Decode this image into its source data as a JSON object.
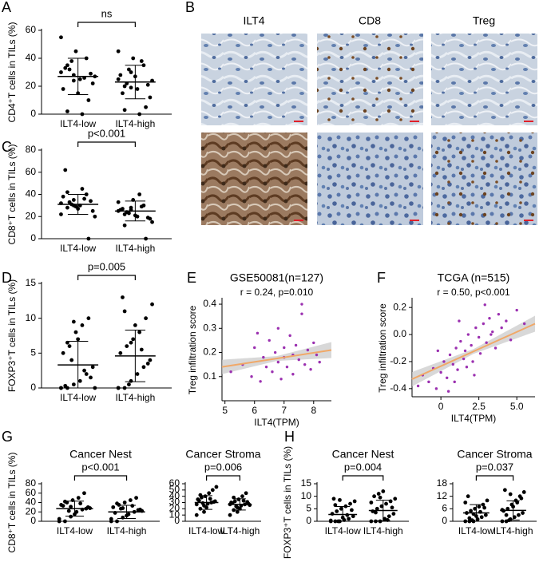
{
  "chart_data": [
    {
      "type": "dot",
      "panel": "A",
      "ylabel": "CD4⁺T cells in TILs (%)",
      "categories": [
        "ILT4-low",
        "ILT4-high"
      ],
      "sig": "ns",
      "ylim": [
        0,
        60
      ],
      "yticks": [
        0,
        20,
        40,
        60
      ],
      "color": "#000000",
      "groups": [
        {
          "values": [
            30,
            35,
            28,
            25,
            40,
            22,
            18,
            32,
            45,
            0,
            10,
            27,
            33,
            38,
            15,
            26,
            29,
            55,
            2,
            24
          ],
          "mean": 27,
          "sd": 13
        },
        {
          "values": [
            25,
            20,
            30,
            18,
            35,
            12,
            28,
            22,
            40,
            0,
            5,
            24,
            15,
            32,
            27,
            38,
            21,
            45,
            3,
            19
          ],
          "mean": 23,
          "sd": 12
        }
      ]
    },
    {
      "type": "dot",
      "panel": "C",
      "ylabel": "CD8⁺T cells in TILs (%)",
      "categories": [
        "ILT4-low",
        "ILT4-high"
      ],
      "sig": "p<0.001",
      "ylim": [
        0,
        80
      ],
      "yticks": [
        0,
        20,
        40,
        60,
        80
      ],
      "color": "#000000",
      "groups": [
        {
          "values": [
            32,
            28,
            35,
            30,
            40,
            25,
            38,
            33,
            29,
            45,
            0,
            20,
            62,
            31,
            27,
            36,
            34,
            22,
            42,
            30
          ],
          "mean": 31,
          "sd": 9
        },
        {
          "values": [
            25,
            22,
            28,
            20,
            30,
            18,
            26,
            24,
            35,
            40,
            0,
            15,
            27,
            23,
            21,
            29,
            19,
            33,
            12,
            26
          ],
          "mean": 25,
          "sd": 9
        }
      ]
    },
    {
      "type": "dot",
      "panel": "D",
      "ylabel": "FOXP3⁺T cells in TILs (%)",
      "categories": [
        "ILT4-low",
        "ILT4-high"
      ],
      "sig": "p=0.005",
      "ylim": [
        0,
        15
      ],
      "yticks": [
        0,
        5,
        10,
        15
      ],
      "color": "#000000",
      "groups": [
        {
          "values": [
            0,
            0,
            0.5,
            1,
            2,
            3,
            5,
            6,
            8,
            9,
            10,
            0,
            0.3,
            4,
            7,
            2.5,
            1.5,
            0,
            6.5,
            9.5
          ],
          "mean": 3.3,
          "sd": 3.4
        },
        {
          "values": [
            0,
            0,
            1,
            2,
            3,
            4,
            5,
            6,
            7,
            8,
            10,
            12,
            13,
            0.5,
            9,
            5.5,
            3.5,
            0,
            11,
            6.5
          ],
          "mean": 4.6,
          "sd": 3.7
        }
      ]
    },
    {
      "type": "scatter",
      "panel": "E",
      "title": "GSE50081(n=127)",
      "annotation": "r = 0.24, p=0.010",
      "xlabel": "ILT4(TPM)",
      "ylabel": "Treg infiltration score",
      "color": "#9b30b0",
      "fit_color": "#f0a868",
      "xlim": [
        4.9,
        8.6
      ],
      "xticks": [
        5,
        6,
        7,
        8
      ],
      "ylim": [
        0,
        0.42
      ],
      "yticks": [
        0.1,
        0.2,
        0.3,
        0.4
      ],
      "x": [
        5.2,
        5.6,
        5.9,
        6.0,
        6.2,
        6.3,
        6.4,
        6.5,
        6.6,
        6.7,
        6.8,
        6.8,
        6.9,
        7.0,
        7.0,
        7.1,
        7.2,
        7.3,
        7.3,
        7.4,
        7.5,
        7.6,
        7.7,
        7.8,
        7.9,
        8.0,
        8.1,
        8.2,
        6.1,
        7.6
      ],
      "y": [
        0.12,
        0.15,
        0.1,
        0.22,
        0.08,
        0.18,
        0.14,
        0.25,
        0.12,
        0.2,
        0.16,
        0.3,
        0.09,
        0.18,
        0.22,
        0.14,
        0.27,
        0.19,
        0.11,
        0.23,
        0.17,
        0.36,
        0.15,
        0.21,
        0.13,
        0.24,
        0.19,
        0.16,
        0.28,
        0.4
      ],
      "fit": {
        "x": [
          4.9,
          8.6
        ],
        "y": [
          0.14,
          0.21
        ]
      }
    },
    {
      "type": "scatter",
      "panel": "F",
      "title": "TCGA (n=515)",
      "annotation": "r = 0.50, p<0.001",
      "xlabel": "ILT4(TPM)",
      "ylabel": "Treg infiltration score",
      "color": "#9b30b0",
      "fit_color": "#f0a868",
      "xlim": [
        -1.9,
        6.2
      ],
      "xticks": [
        0,
        2.5,
        {
          "value": 5,
          "label": "5.0"
        }
      ],
      "ylim": [
        -0.46,
        0.26
      ],
      "yticks": [
        -0.4,
        -0.2,
        {
          "value": 0,
          "label": "0.0"
        },
        0.2
      ],
      "x": [
        -1.5,
        -1.2,
        -0.8,
        -0.5,
        -0.3,
        0,
        0.2,
        0.4,
        0.6,
        0.8,
        1.0,
        1.1,
        1.3,
        1.5,
        1.6,
        1.8,
        2.0,
        2.1,
        2.3,
        2.5,
        2.6,
        2.8,
        3.0,
        3.2,
        3.4,
        3.6,
        3.8,
        4.0,
        4.3,
        4.6,
        5.0,
        5.5,
        0.5,
        1.2,
        2.2,
        2.9,
        1.7,
        -0.2,
        3.3,
        0.9
      ],
      "y": [
        -0.38,
        -0.3,
        -0.35,
        -0.25,
        -0.4,
        -0.28,
        -0.2,
        -0.32,
        -0.15,
        -0.22,
        -0.1,
        -0.26,
        -0.05,
        -0.18,
        -0.12,
        0.0,
        -0.08,
        -0.2,
        0.05,
        -0.02,
        -0.14,
        0.08,
        -0.06,
        0.12,
        0.02,
        -0.1,
        0.15,
        0.05,
        0.1,
        -0.04,
        0.18,
        0.08,
        -0.42,
        0.1,
        -0.3,
        0.22,
        -0.24,
        -0.12,
        0.0,
        -0.35
      ],
      "fit": {
        "x": [
          -1.9,
          6.2
        ],
        "y": [
          -0.33,
          0.08
        ]
      }
    },
    {
      "type": "dot",
      "panel": "G",
      "title": "Cancer Nest",
      "ylabel": "CD8⁺T cells in TILs (%)",
      "categories": [
        "ILT4-low",
        "ILT4-high"
      ],
      "sig": "p<0.001",
      "ylim": [
        0,
        80
      ],
      "yticks": [
        0,
        20,
        40,
        60,
        80
      ],
      "color": "#000000",
      "groups": [
        {
          "values": [
            0,
            0,
            10,
            20,
            25,
            30,
            35,
            40,
            45,
            50,
            60,
            28,
            33,
            22,
            15,
            38,
            27,
            5,
            42,
            31
          ],
          "mean": 27,
          "sd": 16
        },
        {
          "values": [
            0,
            0,
            8,
            15,
            20,
            25,
            30,
            35,
            40,
            45,
            50,
            22,
            18,
            27,
            12,
            33,
            24,
            5,
            38,
            28
          ],
          "mean": 20,
          "sd": 14
        }
      ]
    },
    {
      "type": "dot",
      "title": "Cancer Stroma",
      "categories": [
        "ILT4-low",
        "ILT4-high"
      ],
      "sig": "p=0.006",
      "ylim": [
        0,
        60
      ],
      "yticks": [
        0,
        10,
        20,
        30,
        40,
        50,
        60
      ],
      "color": "#000000",
      "groups": [
        {
          "values": [
            10,
            20,
            25,
            28,
            30,
            32,
            35,
            38,
            40,
            45,
            50,
            55,
            33,
            29,
            22,
            36,
            31,
            27,
            42,
            15
          ],
          "mean": 30,
          "sd": 11
        },
        {
          "values": [
            10,
            18,
            22,
            25,
            27,
            28,
            30,
            32,
            35,
            40,
            45,
            26,
            29,
            24,
            20,
            33,
            31,
            27,
            38,
            15
          ],
          "mean": 27,
          "sd": 9
        }
      ]
    },
    {
      "type": "dot",
      "panel": "H",
      "title": "Cancer Nest",
      "ylabel": "FOXP3⁺T cells in TILs (%)",
      "categories": [
        "ILT4-low",
        "ILT4-high"
      ],
      "sig": "p=0.004",
      "ylim": [
        0,
        15
      ],
      "yticks": [
        0,
        5,
        10,
        15
      ],
      "color": "#000000",
      "groups": [
        {
          "values": [
            0,
            0,
            0,
            0.5,
            1,
            2,
            3,
            4,
            5,
            6,
            7,
            8,
            9,
            0,
            1.5,
            2.5,
            4.5,
            0.3,
            6.5,
            8.5
          ],
          "mean": 2.7,
          "sd": 3.2
        },
        {
          "values": [
            0,
            0,
            0,
            1,
            2,
            3,
            4,
            5,
            6,
            7,
            8,
            9,
            10,
            11,
            12,
            0.5,
            5.5,
            7.5,
            3.5,
            9.5
          ],
          "mean": 4.3,
          "sd": 4.1
        }
      ]
    },
    {
      "type": "dot",
      "title": "Cancer Stroma",
      "categories": [
        "ILT4-low",
        "ILT4-high"
      ],
      "sig": "p=0.037",
      "ylim": [
        0,
        18
      ],
      "yticks": [
        0,
        6,
        12,
        18
      ],
      "color": "#000000",
      "groups": [
        {
          "values": [
            0,
            0,
            0,
            1,
            2,
            3,
            4,
            5,
            6,
            7,
            8,
            10,
            12,
            0.5,
            2.5,
            4.5,
            6.5,
            9,
            1.5,
            3.5
          ],
          "mean": 4,
          "sd": 4
        },
        {
          "values": [
            0,
            0,
            1,
            2,
            3,
            4,
            5,
            6,
            8,
            10,
            12,
            14,
            15,
            0.5,
            7,
            9,
            11,
            5.5,
            3,
            13
          ],
          "mean": 5.2,
          "sd": 4.6
        }
      ]
    }
  ],
  "images": {
    "panel": "B",
    "columns": [
      "ILT4",
      "CD8",
      "Treg"
    ]
  }
}
